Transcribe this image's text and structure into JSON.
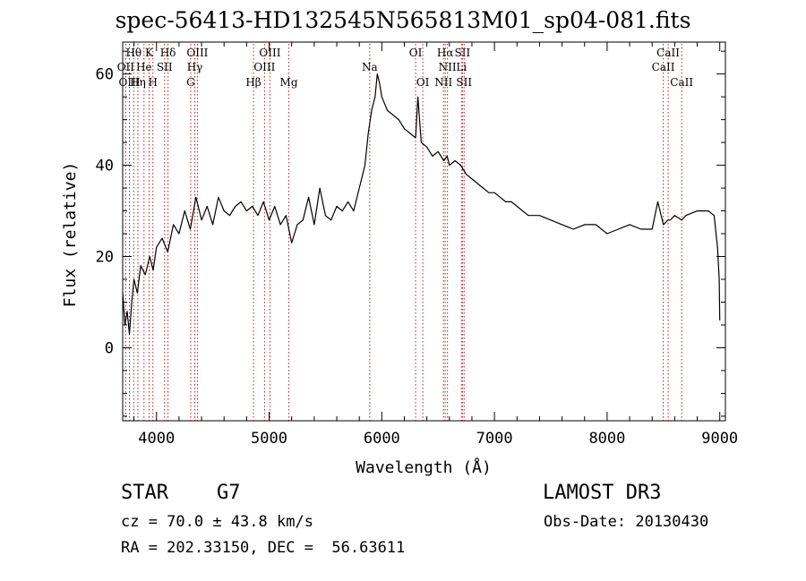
{
  "chart_data": {
    "type": "line",
    "title": "spec-56413-HD132545N565813M01_sp04-081.fits",
    "xlabel": "Wavelength (Å)",
    "ylabel": "Flux (relative)",
    "xlim": [
      3700,
      9050
    ],
    "ylim": [
      -16,
      67
    ],
    "xticks": [
      4000,
      5000,
      6000,
      7000,
      8000,
      9000
    ],
    "yticks": [
      0,
      20,
      40,
      60
    ],
    "grid": false,
    "series": [
      {
        "name": "spectrum",
        "x": [
          3700,
          3720,
          3740,
          3760,
          3780,
          3800,
          3830,
          3860,
          3900,
          3940,
          3970,
          4000,
          4050,
          4100,
          4150,
          4200,
          4250,
          4300,
          4350,
          4400,
          4450,
          4500,
          4550,
          4600,
          4650,
          4700,
          4750,
          4800,
          4850,
          4900,
          4950,
          5000,
          5050,
          5100,
          5150,
          5200,
          5250,
          5300,
          5350,
          5400,
          5450,
          5500,
          5550,
          5600,
          5650,
          5700,
          5750,
          5800,
          5850,
          5880,
          5910,
          5940,
          5960,
          5980,
          6000,
          6050,
          6100,
          6150,
          6200,
          6250,
          6300,
          6320,
          6350,
          6400,
          6450,
          6500,
          6550,
          6580,
          6600,
          6650,
          6700,
          6750,
          6800,
          6850,
          6900,
          6950,
          7000,
          7050,
          7100,
          7150,
          7200,
          7300,
          7400,
          7500,
          7600,
          7700,
          7800,
          7900,
          8000,
          8100,
          8200,
          8300,
          8400,
          8450,
          8500,
          8540,
          8560,
          8600,
          8662,
          8700,
          8800,
          8900,
          8950,
          8980,
          8995,
          9000
        ],
        "values": [
          12,
          5,
          8,
          3,
          10,
          15,
          12,
          18,
          16,
          20,
          17,
          22,
          24,
          21,
          27,
          25,
          30,
          26,
          33,
          28,
          31,
          27,
          33,
          30,
          29,
          31,
          32,
          30,
          31,
          29,
          32,
          28,
          31,
          27,
          29,
          23,
          27,
          28,
          33,
          27,
          35,
          29,
          28,
          31,
          30,
          32,
          30,
          35,
          40,
          47,
          52,
          55,
          60,
          58,
          55,
          52,
          51,
          50,
          48,
          47,
          46,
          55,
          45,
          44,
          42,
          43,
          41,
          42,
          40,
          41,
          40,
          38,
          37,
          36,
          35,
          34,
          34,
          33,
          32,
          32,
          31,
          29,
          29,
          28,
          27,
          26,
          27,
          27,
          25,
          26,
          27,
          26,
          26,
          32,
          27,
          28,
          28,
          29,
          28,
          29,
          30,
          30,
          29,
          22,
          15,
          6
        ]
      }
    ],
    "line_markers": [
      {
        "label": "Hθ",
        "wavelength": 3798,
        "row": 1
      },
      {
        "label": "OII",
        "wavelength": 3727,
        "row": 2
      },
      {
        "label": "OIII",
        "wavelength": 3760,
        "row": 3
      },
      {
        "label": "He",
        "wavelength": 3889,
        "row": 2
      },
      {
        "label": "Hη",
        "wavelength": 3835,
        "row": 3
      },
      {
        "label": "K",
        "wavelength": 3934,
        "row": 1
      },
      {
        "label": "SII",
        "wavelength": 4072,
        "row": 2
      },
      {
        "label": "H",
        "wavelength": 3968,
        "row": 3
      },
      {
        "label": "Hδ",
        "wavelength": 4102,
        "row": 1
      },
      {
        "label": "OIII",
        "wavelength": 4363,
        "row": 1
      },
      {
        "label": "Hγ",
        "wavelength": 4340,
        "row": 2
      },
      {
        "label": "G",
        "wavelength": 4304,
        "row": 3
      },
      {
        "label": "OIII",
        "wavelength": 5007,
        "row": 1
      },
      {
        "label": "OIII",
        "wavelength": 4959,
        "row": 2
      },
      {
        "label": "Hβ",
        "wavelength": 4861,
        "row": 3
      },
      {
        "label": "Mg",
        "wavelength": 5175,
        "row": 3
      },
      {
        "label": "Na",
        "wavelength": 5893,
        "row": 2
      },
      {
        "label": "OI",
        "wavelength": 6300,
        "row": 1
      },
      {
        "label": "OI",
        "wavelength": 6364,
        "row": 3
      },
      {
        "label": "Hα",
        "wavelength": 6563,
        "row": 1
      },
      {
        "label": "SII",
        "wavelength": 6716,
        "row": 1
      },
      {
        "label": "NII",
        "wavelength": 6583,
        "row": 2
      },
      {
        "label": "Li",
        "wavelength": 6707,
        "row": 2
      },
      {
        "label": "NII",
        "wavelength": 6548,
        "row": 3
      },
      {
        "label": "SII",
        "wavelength": 6731,
        "row": 3
      },
      {
        "label": "CaII",
        "wavelength": 8542,
        "row": 1
      },
      {
        "label": "CaII",
        "wavelength": 8498,
        "row": 2
      },
      {
        "label": "CaII",
        "wavelength": 8662,
        "row": 3
      }
    ]
  },
  "info": {
    "class_label": "STAR",
    "class_value": "G7",
    "survey": "LAMOST DR3",
    "cz": "cz = 70.0 ± 43.8 km/s",
    "obs_date": "Obs-Date: 20130430",
    "radec": "RA = 202.33150, DEC =  56.63611"
  },
  "colors": {
    "spectrum": "#000000",
    "line_marker": "#b22222",
    "axes": "#000000"
  }
}
